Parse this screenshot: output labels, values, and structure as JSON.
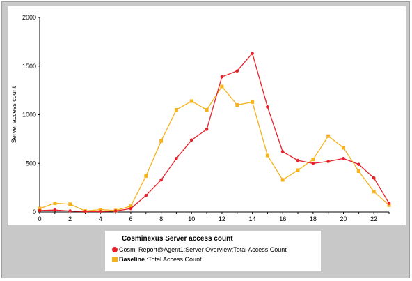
{
  "chart_data": {
    "type": "line",
    "title": "",
    "xlabel": "",
    "ylabel": "Server access count",
    "xlim": [
      0,
      23
    ],
    "ylim": [
      0,
      2000
    ],
    "x_ticks": [
      "0",
      "2",
      "4",
      "6",
      "8",
      "10",
      "12",
      "14",
      "16",
      "18",
      "20",
      "22"
    ],
    "y_ticks": [
      "0",
      "500",
      "1000",
      "1500",
      "2000"
    ],
    "grid": false,
    "legend_placement": "bottom",
    "x": [
      0,
      1,
      2,
      3,
      4,
      5,
      6,
      7,
      8,
      9,
      10,
      11,
      12,
      13,
      14,
      15,
      16,
      17,
      18,
      19,
      20,
      21,
      22,
      23
    ],
    "series": [
      {
        "name": "Cosmi Report@Agent1:Server Overview:Total Access Count",
        "color": "#e8202a",
        "marker": "circle",
        "values": [
          15,
          20,
          10,
          5,
          5,
          10,
          35,
          170,
          330,
          550,
          740,
          850,
          1390,
          1450,
          1630,
          1080,
          620,
          530,
          500,
          520,
          550,
          490,
          350,
          90
        ]
      },
      {
        "name": "Baseline :Total Access Count",
        "color": "#f5b21a",
        "marker": "square",
        "values": [
          35,
          90,
          80,
          10,
          25,
          15,
          60,
          370,
          730,
          1050,
          1140,
          1050,
          1290,
          1100,
          1130,
          580,
          330,
          430,
          540,
          780,
          660,
          420,
          210,
          70
        ]
      }
    ]
  },
  "legend": {
    "title": "Cosminexus  Server access count",
    "items": [
      {
        "bold": "",
        "text": "Cosmi Report@Agent1:Server Overview:Total Access Count"
      },
      {
        "bold": "Baseline",
        "text": " :Total Access Count"
      }
    ]
  }
}
